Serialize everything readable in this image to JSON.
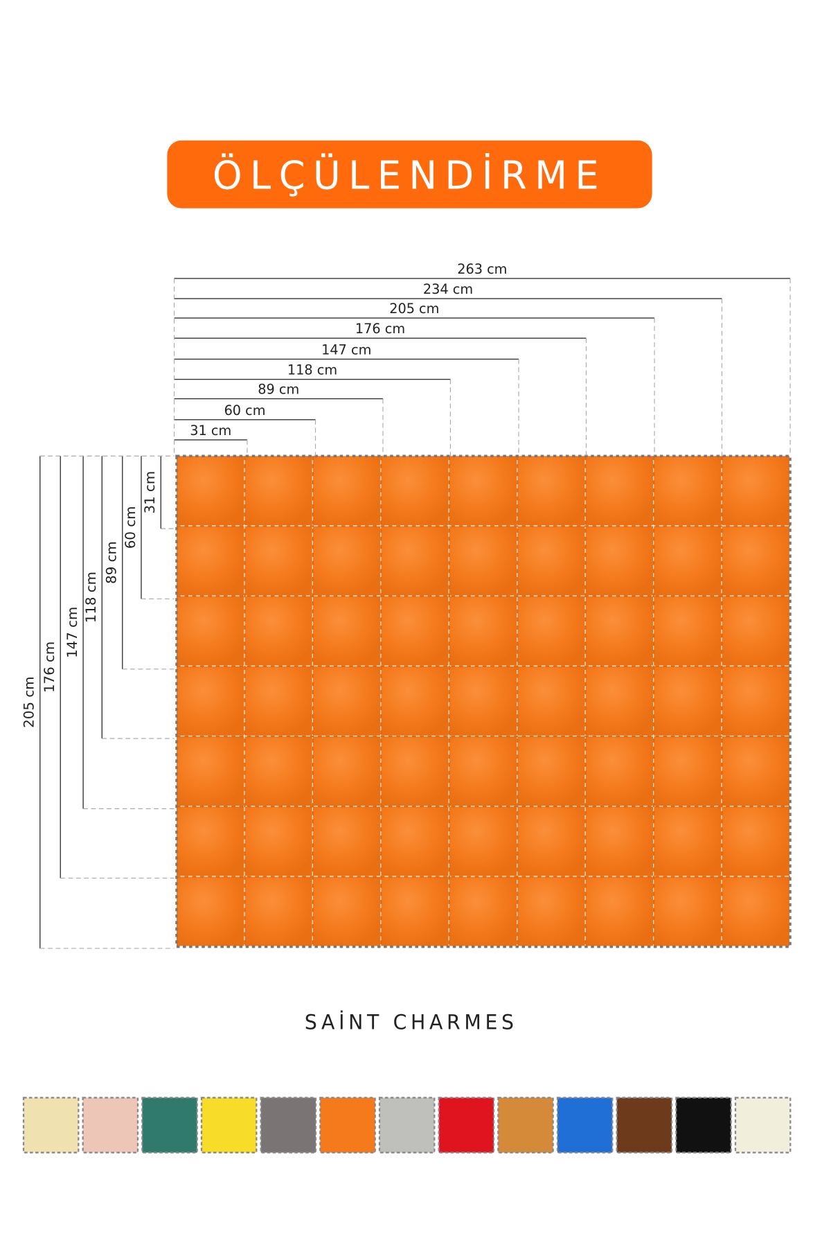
{
  "title": "ÖLÇÜLENDİRME",
  "width_labels": [
    "263 cm",
    "234 cm",
    "205 cm",
    "176 cm",
    "147 cm",
    "118 cm",
    "89 cm",
    "60 cm",
    "31 cm"
  ],
  "height_labels": [
    "31 cm",
    "60 cm",
    "89 cm",
    "118 cm",
    "147 cm",
    "176 cm",
    "205 cm"
  ],
  "brand": "SAİNT CHARMES"
}
